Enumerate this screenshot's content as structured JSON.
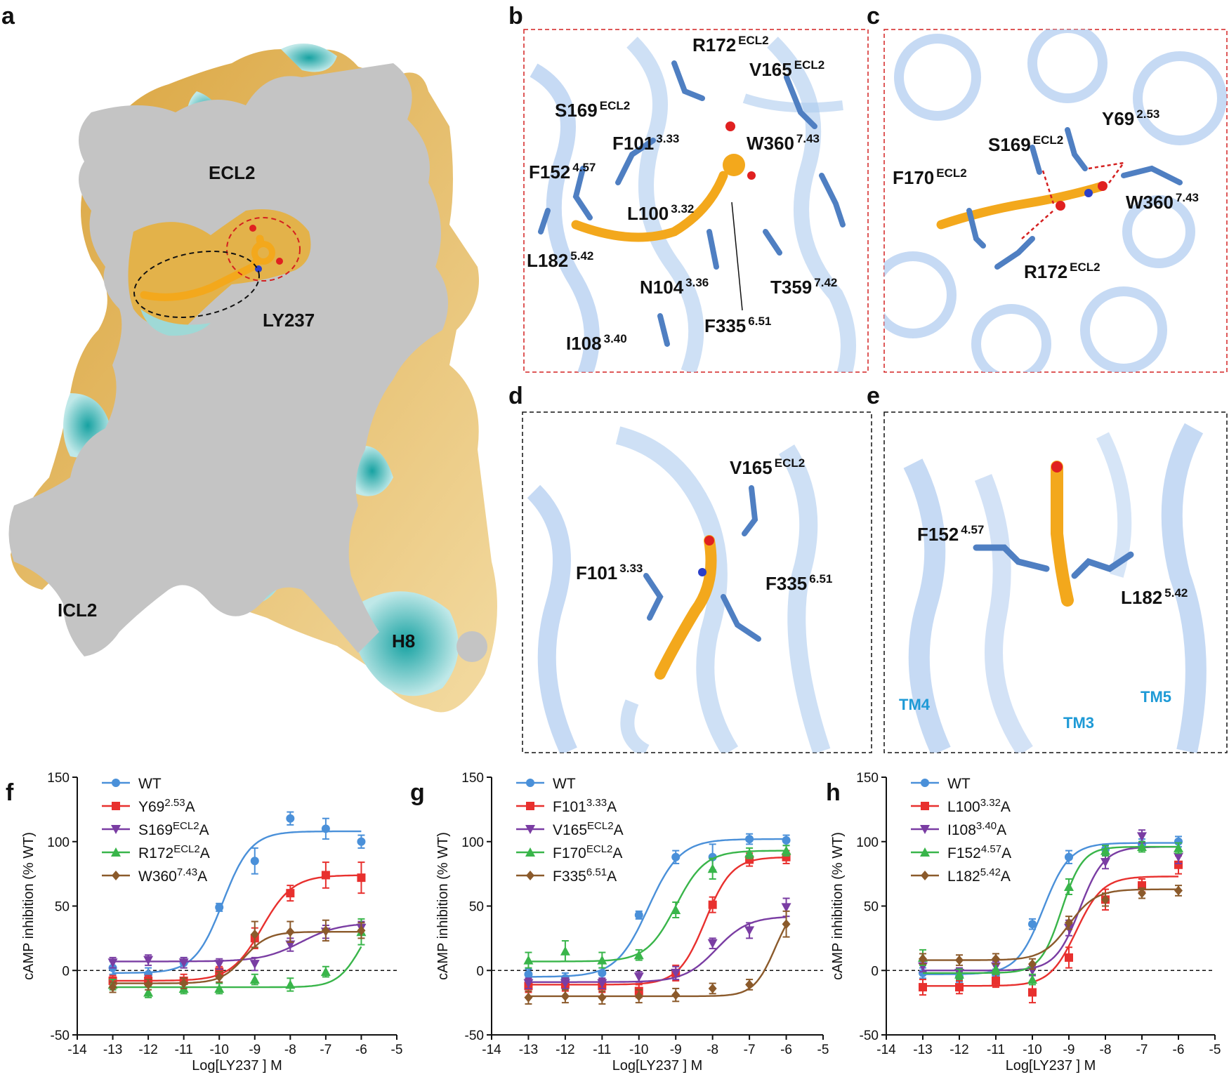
{
  "panels": {
    "a": {
      "letter": "a",
      "labels": {
        "ecl2": "ECL2",
        "ligand": "LY237",
        "icl2": "ICL2",
        "h8": "H8"
      }
    },
    "b": {
      "letter": "b",
      "residues": [
        {
          "name": "R172",
          "sup": "ECL2"
        },
        {
          "name": "V165",
          "sup": "ECL2"
        },
        {
          "name": "S169",
          "sup": "ECL2"
        },
        {
          "name": "F101",
          "sup": "3.33"
        },
        {
          "name": "W360",
          "sup": "7.43"
        },
        {
          "name": "F152",
          "sup": "4.57"
        },
        {
          "name": "L100",
          "sup": "3.32"
        },
        {
          "name": "L182",
          "sup": "5.42"
        },
        {
          "name": "N104",
          "sup": "3.36"
        },
        {
          "name": "T359",
          "sup": "7.42"
        },
        {
          "name": "F335",
          "sup": "6.51"
        },
        {
          "name": "I108",
          "sup": "3.40"
        }
      ]
    },
    "c": {
      "letter": "c",
      "residues": [
        {
          "name": "Y69",
          "sup": "2.53"
        },
        {
          "name": "S169",
          "sup": "ECL2"
        },
        {
          "name": "F170",
          "sup": "ECL2"
        },
        {
          "name": "W360",
          "sup": "7.43"
        },
        {
          "name": "R172",
          "sup": "ECL2"
        }
      ]
    },
    "d": {
      "letter": "d",
      "residues": [
        {
          "name": "V165",
          "sup": "ECL2"
        },
        {
          "name": "F101",
          "sup": "3.33"
        },
        {
          "name": "F335",
          "sup": "6.51"
        }
      ]
    },
    "e": {
      "letter": "e",
      "residues": [
        {
          "name": "F152",
          "sup": "4.57"
        },
        {
          "name": "L182",
          "sup": "5.42"
        }
      ],
      "tm_labels": [
        "TM4",
        "TM3",
        "TM5"
      ]
    }
  },
  "colors": {
    "ligand": "#f3a81c",
    "residue": "#4f7fc2",
    "ribbon": "#aecbef",
    "surface_gray": "#c4c4c4",
    "teal": "#1aa5a5",
    "tan": "#dca33a"
  },
  "chart_data": [
    {
      "panel": "f",
      "type": "line",
      "xlabel": "Log[LY237 ] M",
      "ylabel": "cAMP inhibition (% WT)",
      "xlim": [
        -14,
        -5
      ],
      "ylim": [
        -50,
        150
      ],
      "xticks": [
        -14,
        -13,
        -12,
        -11,
        -10,
        -9,
        -8,
        -7,
        -6,
        -5
      ],
      "yticks": [
        -50,
        0,
        50,
        100,
        150
      ],
      "x": [
        -13,
        -12,
        -11,
        -10,
        -9,
        -8,
        -7,
        -6
      ],
      "series": [
        {
          "name": "WT",
          "base": "WT",
          "sup": "",
          "suffix": "",
          "color": "#4a90d9",
          "marker": "circle",
          "values": [
            2,
            -3,
            6,
            49,
            85,
            118,
            110,
            100
          ],
          "errors": [
            5,
            5,
            4,
            3,
            10,
            5,
            8,
            5
          ],
          "fit": {
            "bottom": -2,
            "top": 108,
            "logec50": -9.9,
            "hill": 1.1
          }
        },
        {
          "name": "Y69 2.53 A",
          "base": "Y69",
          "sup": "2.53",
          "suffix": "A",
          "color": "#e8302e",
          "marker": "square",
          "values": [
            -8,
            -8,
            -8,
            -1,
            25,
            60,
            74,
            72
          ],
          "errors": [
            4,
            4,
            5,
            4,
            8,
            6,
            10,
            12
          ],
          "fit": {
            "bottom": -8,
            "top": 74,
            "logec50": -8.8,
            "hill": 1.0
          }
        },
        {
          "name": "S169 ECL2 A",
          "base": "S169",
          "sup": "ECL2",
          "suffix": "A",
          "color": "#7a3da3",
          "marker": "triangle-down",
          "values": [
            6,
            8,
            6,
            5,
            5,
            20,
            30,
            33
          ],
          "errors": [
            4,
            4,
            4,
            4,
            5,
            5,
            5,
            5
          ],
          "fit": {
            "bottom": 7,
            "top": 37,
            "logec50": -7.7,
            "hill": 0.8
          }
        },
        {
          "name": "R172 ECL2 A",
          "base": "R172",
          "sup": "ECL2",
          "suffix": "A",
          "color": "#39b54a",
          "marker": "triangle-up",
          "values": [
            -11,
            -17,
            -14,
            -14,
            -7,
            -11,
            -1,
            30
          ],
          "errors": [
            4,
            4,
            4,
            4,
            4,
            5,
            4,
            10
          ],
          "fit": {
            "bottom": -13,
            "top": 50,
            "logec50": -6.0,
            "hill": 1.3
          }
        },
        {
          "name": "W360 7.43 A",
          "base": "W360",
          "sup": "7.43",
          "suffix": "A",
          "color": "#8b5a2b",
          "marker": "diamond",
          "values": [
            -13,
            -11,
            -10,
            -5,
            28,
            30,
            31,
            31
          ],
          "errors": [
            4,
            4,
            4,
            4,
            10,
            8,
            8,
            6
          ],
          "fit": {
            "bottom": -10,
            "top": 30,
            "logec50": -9.3,
            "hill": 1.3
          }
        }
      ]
    },
    {
      "panel": "g",
      "type": "line",
      "xlabel": "Log[LY237 ] M",
      "ylabel": "cAMP inhibition (% WT)",
      "xlim": [
        -14,
        -5
      ],
      "ylim": [
        -50,
        150
      ],
      "xticks": [
        -14,
        -13,
        -12,
        -11,
        -10,
        -9,
        -8,
        -7,
        -6,
        -5
      ],
      "yticks": [
        -50,
        0,
        50,
        100,
        150
      ],
      "x": [
        -13,
        -12,
        -11,
        -10,
        -9,
        -8,
        -7,
        -6
      ],
      "series": [
        {
          "name": "WT",
          "base": "WT",
          "sup": "",
          "suffix": "",
          "color": "#4a90d9",
          "marker": "circle",
          "values": [
            -3,
            -6,
            -2,
            43,
            88,
            88,
            102,
            101
          ],
          "errors": [
            4,
            4,
            4,
            3,
            5,
            10,
            4,
            4
          ],
          "fit": {
            "bottom": -5,
            "top": 102,
            "logec50": -9.75,
            "hill": 1.0
          }
        },
        {
          "name": "F101 3.33 A",
          "base": "F101",
          "sup": "3.33",
          "suffix": "A",
          "color": "#e8302e",
          "marker": "square",
          "values": [
            -12,
            -11,
            -12,
            -16,
            -2,
            51,
            86,
            88
          ],
          "errors": [
            5,
            5,
            5,
            5,
            6,
            6,
            5,
            5
          ],
          "fit": {
            "bottom": -11,
            "top": 88,
            "logec50": -8.2,
            "hill": 1.2
          }
        },
        {
          "name": "V165 ECL2 A",
          "base": "V165",
          "sup": "ECL2",
          "suffix": "A",
          "color": "#7a3da3",
          "marker": "triangle-down",
          "values": [
            -10,
            -10,
            -10,
            -5,
            -2,
            21,
            31,
            49
          ],
          "errors": [
            4,
            4,
            4,
            4,
            5,
            4,
            6,
            7
          ],
          "fit": {
            "bottom": -9,
            "top": 42,
            "logec50": -7.9,
            "hill": 1.0
          }
        },
        {
          "name": "F170 ECL2 A",
          "base": "F170",
          "sup": "ECL2",
          "suffix": "A",
          "color": "#39b54a",
          "marker": "triangle-up",
          "values": [
            8,
            15,
            8,
            12,
            47,
            79,
            91,
            93
          ],
          "errors": [
            6,
            8,
            6,
            4,
            6,
            8,
            4,
            4
          ],
          "fit": {
            "bottom": 7,
            "top": 93,
            "logec50": -9.0,
            "hill": 1.1
          }
        },
        {
          "name": "F335 6.51 A",
          "base": "F335",
          "sup": "6.51",
          "suffix": "A",
          "color": "#8b5a2b",
          "marker": "diamond",
          "values": [
            -21,
            -20,
            -21,
            -20,
            -19,
            -14,
            -11,
            36
          ],
          "errors": [
            5,
            5,
            5,
            5,
            5,
            4,
            4,
            10
          ],
          "fit": {
            "bottom": -20,
            "top": 55,
            "logec50": -6.3,
            "hill": 1.5
          }
        }
      ]
    },
    {
      "panel": "h",
      "type": "line",
      "xlabel": "Log[LY237 ] M",
      "ylabel": "cAMP inhibition (% WT)",
      "xlim": [
        -14,
        -5
      ],
      "ylim": [
        -50,
        150
      ],
      "xticks": [
        -14,
        -13,
        -12,
        -11,
        -10,
        -9,
        -8,
        -7,
        -6,
        -5
      ],
      "yticks": [
        -50,
        0,
        50,
        100,
        150
      ],
      "x": [
        -13,
        -12,
        -11,
        -10,
        -9,
        -8,
        -7,
        -6
      ],
      "series": [
        {
          "name": "WT",
          "base": "WT",
          "sup": "",
          "suffix": "",
          "color": "#4a90d9",
          "marker": "circle",
          "values": [
            -2,
            -5,
            -3,
            36,
            88,
            94,
            98,
            100
          ],
          "errors": [
            4,
            4,
            4,
            4,
            5,
            4,
            4,
            4
          ],
          "fit": {
            "bottom": -3,
            "top": 99,
            "logec50": -9.7,
            "hill": 1.2
          }
        },
        {
          "name": "L100 3.32 A",
          "base": "L100",
          "sup": "3.32",
          "suffix": "A",
          "color": "#e8302e",
          "marker": "square",
          "values": [
            -13,
            -13,
            -8,
            -17,
            10,
            55,
            66,
            82
          ],
          "errors": [
            6,
            5,
            5,
            8,
            8,
            8,
            5,
            7
          ],
          "fit": {
            "bottom": -12,
            "top": 73,
            "logec50": -8.8,
            "hill": 1.2
          }
        },
        {
          "name": "I108 3.40 A",
          "base": "I108",
          "sup": "3.40",
          "suffix": "A",
          "color": "#7a3da3",
          "marker": "triangle-down",
          "values": [
            3,
            -2,
            3,
            0,
            33,
            84,
            104,
            88
          ],
          "errors": [
            4,
            4,
            4,
            4,
            6,
            5,
            5,
            5
          ],
          "fit": {
            "bottom": 0,
            "top": 96,
            "logec50": -8.7,
            "hill": 1.3
          }
        },
        {
          "name": "F152 4.57 A",
          "base": "F152",
          "sup": "4.57",
          "suffix": "A",
          "color": "#39b54a",
          "marker": "triangle-up",
          "values": [
            10,
            -3,
            1,
            -7,
            65,
            93,
            96,
            95
          ],
          "errors": [
            6,
            4,
            4,
            4,
            6,
            4,
            4,
            4
          ],
          "fit": {
            "bottom": -2,
            "top": 96,
            "logec50": -9.2,
            "hill": 1.5
          }
        },
        {
          "name": "L182 5.42 A",
          "base": "L182",
          "sup": "5.42",
          "suffix": "A",
          "color": "#8b5a2b",
          "marker": "diamond",
          "values": [
            9,
            8,
            9,
            5,
            37,
            55,
            60,
            62
          ],
          "errors": [
            4,
            4,
            4,
            4,
            5,
            5,
            4,
            4
          ],
          "fit": {
            "bottom": 8,
            "top": 63,
            "logec50": -9.0,
            "hill": 1.2
          }
        }
      ]
    }
  ]
}
